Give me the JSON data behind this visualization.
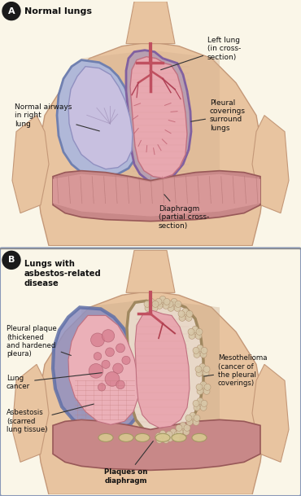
{
  "figsize": [
    3.7,
    6.09
  ],
  "dpi": 100,
  "bg_color_a": "#faf6e8",
  "bg_color_b": "#dde4ef",
  "body_color": "#e8c4a0",
  "body_edge": "#c49878",
  "label_a": "A",
  "label_b": "B",
  "title_a": "Normal lungs",
  "title_b": "Lungs with\nasbestos-related\ndisease"
}
